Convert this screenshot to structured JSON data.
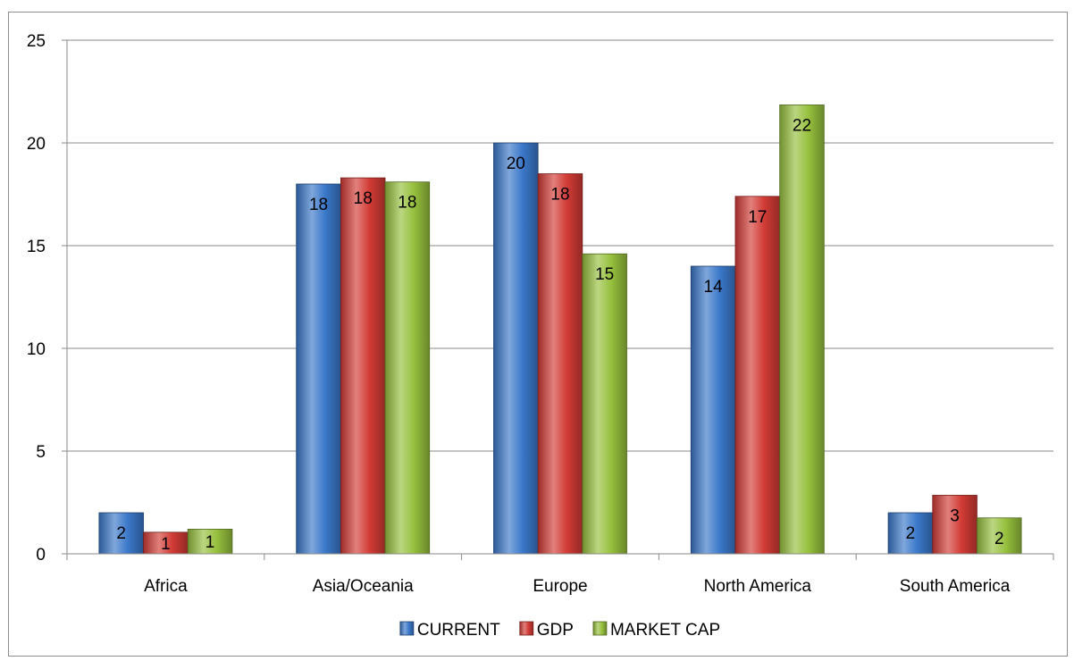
{
  "chart_data": {
    "type": "bar",
    "title": "",
    "xlabel": "",
    "ylabel": "",
    "ylim": [
      0,
      25
    ],
    "yticks": [
      0,
      5,
      10,
      15,
      20,
      25
    ],
    "grid": true,
    "legend_position": "bottom",
    "categories": [
      "Africa",
      "Asia/Oceania",
      "Europe",
      "North America",
      "South America"
    ],
    "series": [
      {
        "name": "CURRENT",
        "color": "#3a78c9",
        "values": [
          2,
          18,
          20,
          14,
          2
        ],
        "labels": [
          "2",
          "18",
          "20",
          "14",
          "2"
        ]
      },
      {
        "name": "GDP",
        "color": "#d23b35",
        "values": [
          1.05,
          18.3,
          18.5,
          17.4,
          2.85
        ],
        "labels": [
          "1",
          "18",
          "18",
          "17",
          "3"
        ]
      },
      {
        "name": "MARKET CAP",
        "color": "#96c03d",
        "values": [
          1.2,
          18.1,
          14.6,
          21.85,
          1.75
        ],
        "labels": [
          "1",
          "18",
          "15",
          "22",
          "2"
        ]
      }
    ]
  }
}
